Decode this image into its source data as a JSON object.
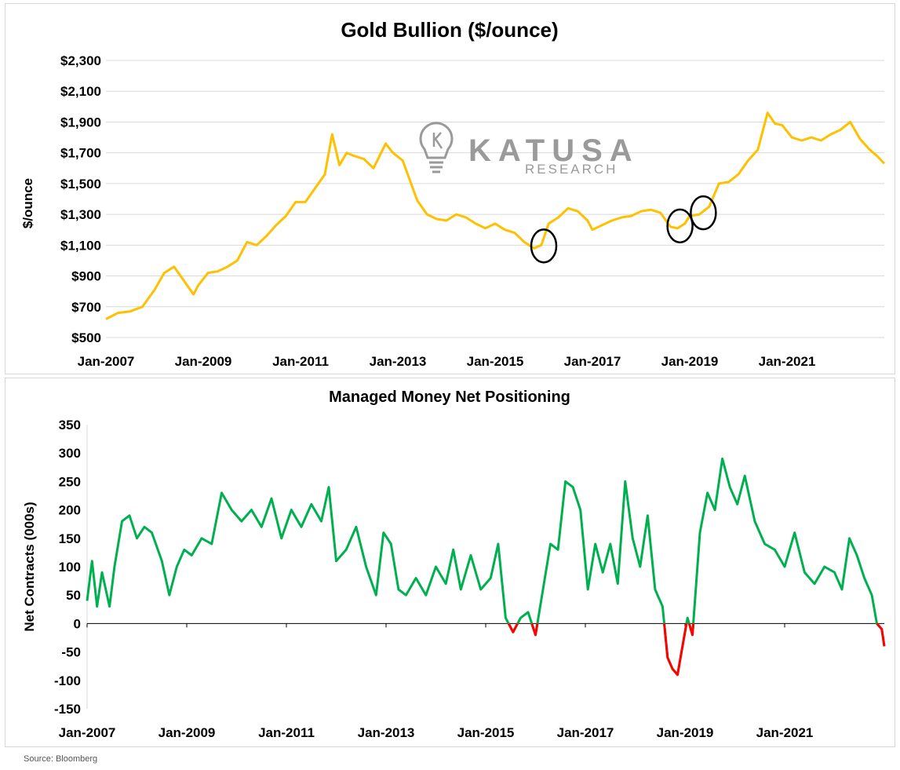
{
  "chart_data": [
    {
      "type": "line",
      "title": "Gold Bullion ($/ounce)",
      "ylabel": "$/ounce",
      "xlabel": "",
      "ylim": [
        500,
        2300
      ],
      "yticks": [
        500,
        700,
        900,
        1100,
        1300,
        1500,
        1700,
        1900,
        2100,
        2300
      ],
      "ytick_labels": [
        "$500",
        "$700",
        "$900",
        "$1,100",
        "$1,300",
        "$1,500",
        "$1,700",
        "$1,900",
        "$2,100",
        "$2,300"
      ],
      "xlim": [
        2007.0,
        2023.0
      ],
      "xtick_labels": [
        "Jan-2007",
        "Jan-2009",
        "Jan-2011",
        "Jan-2013",
        "Jan-2015",
        "Jan-2017",
        "Jan-2019",
        "Jan-2021"
      ],
      "xtick_values": [
        2007,
        2009,
        2011,
        2013,
        2015,
        2017,
        2019,
        2021
      ],
      "grid": true,
      "line_color": "#FFC000",
      "series": [
        {
          "x": [
            2007.0,
            2007.25,
            2007.5,
            2007.75,
            2008.0,
            2008.2,
            2008.4,
            2008.6,
            2008.8,
            2008.9,
            2009.1,
            2009.3,
            2009.5,
            2009.7,
            2009.9,
            2010.1,
            2010.3,
            2010.5,
            2010.7,
            2010.9,
            2011.1,
            2011.3,
            2011.5,
            2011.65,
            2011.8,
            2011.95,
            2012.1,
            2012.3,
            2012.5,
            2012.75,
            2012.9,
            2013.1,
            2013.25,
            2013.4,
            2013.6,
            2013.8,
            2014.0,
            2014.2,
            2014.4,
            2014.6,
            2014.8,
            2015.0,
            2015.2,
            2015.4,
            2015.6,
            2015.8,
            2015.95,
            2016.1,
            2016.3,
            2016.5,
            2016.7,
            2016.9,
            2017.0,
            2017.2,
            2017.4,
            2017.6,
            2017.8,
            2018.0,
            2018.2,
            2018.4,
            2018.6,
            2018.75,
            2018.9,
            2019.0,
            2019.2,
            2019.4,
            2019.6,
            2019.8,
            2020.0,
            2020.2,
            2020.4,
            2020.6,
            2020.75,
            2020.9,
            2021.1,
            2021.3,
            2021.5,
            2021.7,
            2021.9,
            2022.1,
            2022.3,
            2022.5,
            2022.7,
            2022.85,
            2023.0
          ],
          "y": [
            620,
            660,
            670,
            700,
            810,
            920,
            960,
            870,
            780,
            840,
            920,
            930,
            960,
            1000,
            1120,
            1100,
            1160,
            1230,
            1290,
            1380,
            1380,
            1470,
            1560,
            1820,
            1620,
            1700,
            1680,
            1660,
            1600,
            1760,
            1700,
            1650,
            1520,
            1390,
            1300,
            1270,
            1260,
            1300,
            1280,
            1240,
            1210,
            1240,
            1200,
            1180,
            1120,
            1080,
            1100,
            1240,
            1280,
            1340,
            1320,
            1260,
            1200,
            1230,
            1260,
            1280,
            1290,
            1320,
            1330,
            1310,
            1220,
            1210,
            1240,
            1290,
            1300,
            1350,
            1500,
            1510,
            1560,
            1650,
            1720,
            1960,
            1890,
            1880,
            1800,
            1780,
            1800,
            1780,
            1820,
            1850,
            1900,
            1790,
            1720,
            1680,
            1630
          ]
        }
      ],
      "annotations": [
        "circle",
        "circle",
        "circle"
      ]
    },
    {
      "type": "line",
      "title": "Managed Money Net Positioning",
      "ylabel": "Net Contracts (000s)",
      "xlabel": "",
      "ylim": [
        -150,
        350
      ],
      "yticks": [
        -150,
        -100,
        -50,
        0,
        50,
        100,
        150,
        200,
        250,
        300,
        350
      ],
      "ytick_labels": [
        "-150",
        "-100",
        "-50",
        "0",
        "50",
        "100",
        "150",
        "200",
        "250",
        "300",
        "350"
      ],
      "xlim": [
        2007.0,
        2023.0
      ],
      "xtick_labels": [
        "Jan-2007",
        "Jan-2009",
        "Jan-2011",
        "Jan-2013",
        "Jan-2015",
        "Jan-2017",
        "Jan-2019",
        "Jan-2021"
      ],
      "xtick_values": [
        2007,
        2009,
        2011,
        2013,
        2015,
        2017,
        2019,
        2021
      ],
      "grid": false,
      "positive_color": "#00B050",
      "negative_color": "#FF0000",
      "series": [
        {
          "x": [
            2007.0,
            2007.1,
            2007.2,
            2007.3,
            2007.45,
            2007.55,
            2007.7,
            2007.85,
            2008.0,
            2008.15,
            2008.3,
            2008.5,
            2008.65,
            2008.8,
            2008.95,
            2009.1,
            2009.3,
            2009.5,
            2009.7,
            2009.9,
            2010.1,
            2010.3,
            2010.5,
            2010.7,
            2010.9,
            2011.1,
            2011.3,
            2011.5,
            2011.7,
            2011.85,
            2012.0,
            2012.2,
            2012.4,
            2012.6,
            2012.8,
            2012.95,
            2013.1,
            2013.25,
            2013.4,
            2013.6,
            2013.8,
            2014.0,
            2014.2,
            2014.35,
            2014.5,
            2014.7,
            2014.9,
            2015.1,
            2015.25,
            2015.4,
            2015.55,
            2015.7,
            2015.85,
            2016.0,
            2016.15,
            2016.3,
            2016.45,
            2016.6,
            2016.75,
            2016.9,
            2017.05,
            2017.2,
            2017.35,
            2017.5,
            2017.65,
            2017.8,
            2017.95,
            2018.1,
            2018.25,
            2018.4,
            2018.55,
            2018.65,
            2018.75,
            2018.85,
            2018.95,
            2019.05,
            2019.15,
            2019.3,
            2019.45,
            2019.6,
            2019.75,
            2019.9,
            2020.05,
            2020.2,
            2020.4,
            2020.6,
            2020.8,
            2021.0,
            2021.2,
            2021.4,
            2021.6,
            2021.8,
            2022.0,
            2022.15,
            2022.3,
            2022.45,
            2022.6,
            2022.75,
            2022.85,
            2022.95,
            2023.0
          ],
          "y": [
            40,
            110,
            30,
            90,
            30,
            100,
            180,
            190,
            150,
            170,
            160,
            110,
            50,
            100,
            130,
            120,
            150,
            140,
            230,
            200,
            180,
            200,
            170,
            220,
            150,
            200,
            170,
            210,
            180,
            240,
            110,
            130,
            170,
            100,
            50,
            160,
            140,
            60,
            50,
            80,
            50,
            100,
            70,
            130,
            60,
            120,
            60,
            80,
            140,
            10,
            -15,
            10,
            20,
            -20,
            60,
            140,
            130,
            250,
            240,
            200,
            60,
            140,
            90,
            140,
            70,
            250,
            150,
            100,
            190,
            60,
            30,
            -60,
            -80,
            -90,
            -40,
            10,
            -20,
            160,
            230,
            200,
            290,
            240,
            210,
            260,
            180,
            140,
            130,
            100,
            160,
            90,
            70,
            100,
            90,
            60,
            150,
            120,
            80,
            50,
            0,
            -10,
            -40
          ]
        }
      ]
    }
  ],
  "watermark": {
    "brand": "KATUSA",
    "sub": "RESEARCH"
  },
  "source": "Source: Bloomberg"
}
